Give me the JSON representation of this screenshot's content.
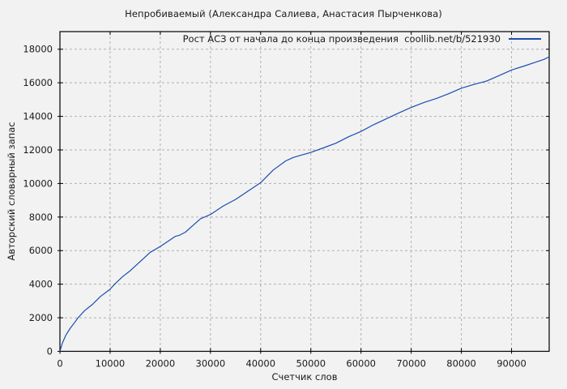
{
  "chart_data": {
    "type": "line",
    "title": "Непробиваемый (Александра Салиева, Анастасия Пырченкова)",
    "legend": "Рост АСЗ от начала до конца произведения  coollib.net/b/521930",
    "legend_position": "top-right-inside",
    "xlabel": "Счетчик слов",
    "ylabel": "Авторский словарный запас",
    "xlim": [
      0,
      97500
    ],
    "ylim": [
      0,
      19050
    ],
    "xticks": [
      0,
      10000,
      20000,
      30000,
      40000,
      50000,
      60000,
      70000,
      80000,
      90000
    ],
    "yticks": [
      0,
      2000,
      4000,
      6000,
      8000,
      10000,
      12000,
      14000,
      16000,
      18000
    ],
    "grid": true,
    "colors": {
      "line": "#1b4db0",
      "grid": "#b0b0b0",
      "axis": "#000000",
      "background": "#f2f2f2",
      "text": "#1a1a1a"
    },
    "series": [
      {
        "name": "Рост АСЗ от начала до конца произведения  coollib.net/b/521930",
        "x": [
          0,
          500,
          1200,
          2000,
          3000,
          3600,
          5000,
          6500,
          8000,
          10000,
          10900,
          12500,
          14000,
          16000,
          18000,
          20000,
          21500,
          23000,
          23700,
          25000,
          26500,
          28000,
          30000,
          32500,
          35000,
          37500,
          40000,
          41500,
          42500,
          45000,
          46500,
          48000,
          50000,
          52500,
          55000,
          57500,
          60000,
          62500,
          65000,
          67500,
          70000,
          72500,
          75000,
          77500,
          80000,
          82500,
          85000,
          87500,
          90000,
          92500,
          95000,
          96500,
          97500
        ],
        "y": [
          0,
          500,
          970,
          1350,
          1750,
          2000,
          2450,
          2800,
          3250,
          3700,
          4000,
          4450,
          4800,
          5350,
          5900,
          6250,
          6550,
          6850,
          6900,
          7100,
          7500,
          7900,
          8150,
          8650,
          9050,
          9550,
          10050,
          10500,
          10800,
          11350,
          11550,
          11680,
          11850,
          12120,
          12400,
          12780,
          13100,
          13500,
          13850,
          14200,
          14530,
          14820,
          15060,
          15350,
          15680,
          15900,
          16100,
          16430,
          16760,
          17000,
          17250,
          17400,
          17550
        ]
      }
    ]
  }
}
